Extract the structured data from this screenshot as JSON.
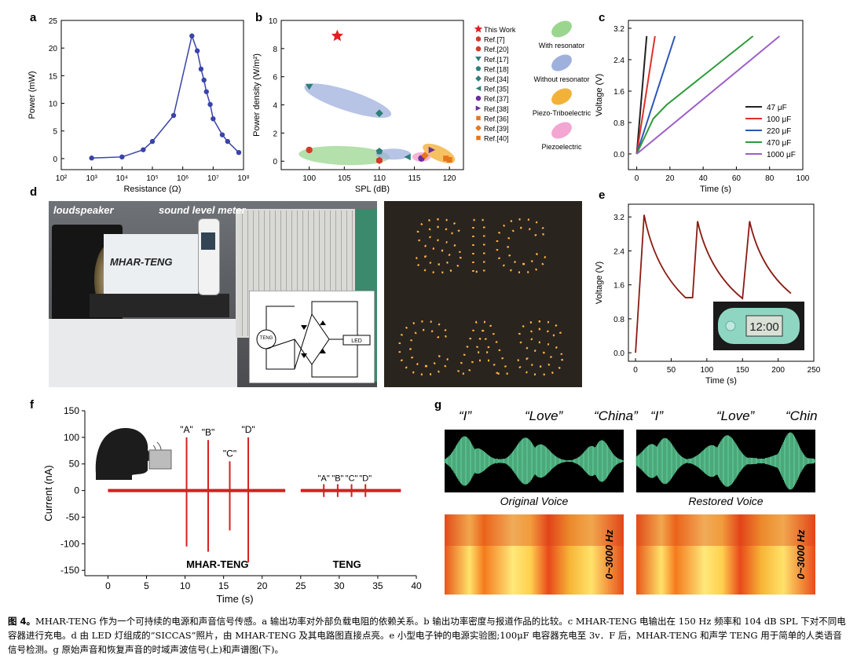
{
  "labels": {
    "a": "a",
    "b": "b",
    "c": "c",
    "d": "d",
    "e": "e",
    "f": "f",
    "g": "g"
  },
  "panel_a": {
    "chart_data": {
      "type": "line",
      "xlabel": "Resistance (Ω)",
      "ylabel": "Power (mW)",
      "xscale": "log",
      "xlim": [
        100,
        100000000
      ],
      "ylim": [
        -2,
        25
      ],
      "xticks": [
        "10²",
        "10³",
        "10⁴",
        "10⁵",
        "10⁶",
        "10⁷",
        "10⁸"
      ],
      "yticks": [
        0,
        5,
        10,
        15,
        20,
        25
      ],
      "x": [
        1000,
        10000,
        50000,
        100000,
        500000,
        2000000,
        3000000,
        4000000,
        5000000,
        6000000,
        8000000,
        10000000,
        20000000,
        30000000,
        70000000
      ],
      "y": [
        0.1,
        0.3,
        1.6,
        3.1,
        7.8,
        22.2,
        19.5,
        16.2,
        14.2,
        12.1,
        9.8,
        7.2,
        4.3,
        3.1,
        1.1
      ],
      "color": "#3a43a8"
    }
  },
  "panel_b": {
    "chart_data": {
      "type": "scatter",
      "xlabel": "SPL (dB)",
      "ylabel": "Power density (W/m²)",
      "xlim": [
        96,
        122
      ],
      "ylim": [
        -0.6,
        10
      ],
      "xticks": [
        100,
        105,
        110,
        115,
        120
      ],
      "yticks": [
        0,
        2,
        4,
        6,
        8,
        10
      ],
      "points": [
        {
          "name": "This Work",
          "x": 104,
          "y": 8.9,
          "marker": "star",
          "color": "#e02020"
        },
        {
          "name": "Ref.[7]",
          "x": 110,
          "y": 0.05,
          "marker": "hexagon",
          "color": "#d23b2a"
        },
        {
          "name": "Ref.[20]",
          "x": 100,
          "y": 0.8,
          "marker": "circle",
          "color": "#d23b2a"
        },
        {
          "name": "Ref.[17]",
          "x": 100,
          "y": 5.3,
          "marker": "triangle-down",
          "color": "#2d7f7a"
        },
        {
          "name": "Ref.[18]",
          "x": 110,
          "y": 0.7,
          "marker": "pentagon",
          "color": "#2d7f7a"
        },
        {
          "name": "Ref.[34]",
          "x": 110,
          "y": 3.4,
          "marker": "diamond",
          "color": "#2d7f7a"
        },
        {
          "name": "Ref.[35]",
          "x": 114,
          "y": 0.3,
          "marker": "triangle-left",
          "color": "#2d7f7a"
        },
        {
          "name": "Ref.[37]",
          "x": 116,
          "y": 0.2,
          "marker": "half-circle",
          "color": "#6a2fa0"
        },
        {
          "name": "Ref.[38]",
          "x": 117.5,
          "y": 0.8,
          "marker": "triangle-right",
          "color": "#6a2fa0"
        },
        {
          "name": "Ref.[36]",
          "x": 119.5,
          "y": 0.2,
          "marker": "square",
          "color": "#e8751a"
        },
        {
          "name": "Ref.[39]",
          "x": 116.5,
          "y": 0.4,
          "marker": "half-diamond",
          "color": "#e8751a"
        },
        {
          "name": "Ref.[40]",
          "x": 120,
          "y": 0.1,
          "marker": "half-square",
          "color": "#e8751a"
        }
      ],
      "regions": [
        {
          "name": "With resonator",
          "color": "#9bd68f"
        },
        {
          "name": "Without resonator",
          "color": "#9fb0dd"
        },
        {
          "name": "Piezo-Triboelectric",
          "color": "#f2b23a"
        },
        {
          "name": "Piezoelectric",
          "color": "#f3a6d2"
        }
      ]
    }
  },
  "panel_c": {
    "chart_data": {
      "type": "line",
      "xlabel": "Time (s)",
      "ylabel": "Voltage (V)",
      "xlim": [
        -5,
        100
      ],
      "ylim": [
        -0.4,
        3.4
      ],
      "xticks": [
        0,
        20,
        40,
        60,
        80,
        100
      ],
      "yticks": [
        "0.0",
        "0.8",
        "1.6",
        "2.4",
        "3.2"
      ],
      "series": [
        {
          "name": "47 μF",
          "color": "#222222",
          "x": [
            0,
            6
          ],
          "y": [
            0,
            3.0
          ]
        },
        {
          "name": "100 μF",
          "color": "#e0302a",
          "x": [
            0,
            11
          ],
          "y": [
            0,
            3.0
          ]
        },
        {
          "name": "220 μF",
          "color": "#2e55b7",
          "x": [
            0,
            23
          ],
          "y": [
            0,
            3.0
          ]
        },
        {
          "name": "470 μF",
          "color": "#2f9a3c",
          "x": [
            0,
            10,
            18,
            70
          ],
          "y": [
            0,
            0.9,
            1.25,
            3.0
          ]
        },
        {
          "name": "1000 μF",
          "color": "#9c5fc9",
          "x": [
            0,
            86
          ],
          "y": [
            0,
            3.0
          ]
        }
      ]
    }
  },
  "panel_d": {
    "label_loudspeaker": "loudspeaker",
    "label_slm": "sound level meter",
    "label_device": "MHAR-TENG",
    "circuit_teng": "TENG",
    "circuit_led": "LED",
    "led_text_top": "SIC",
    "led_text_bottom": "CAS"
  },
  "panel_e": {
    "chart_data": {
      "type": "line",
      "xlabel": "Time (s)",
      "ylabel": "Voltage (V)",
      "xlim": [
        -10,
        250
      ],
      "ylim": [
        -0.2,
        3.5
      ],
      "xticks": [
        0,
        50,
        100,
        150,
        200,
        250
      ],
      "yticks": [
        "0.0",
        "0.8",
        "1.6",
        "2.4",
        "3.2"
      ],
      "x": [
        0,
        12,
        70,
        80,
        87,
        150,
        160,
        218
      ],
      "y": [
        0,
        3.25,
        1.3,
        1.3,
        3.1,
        1.28,
        3.1,
        1.4
      ],
      "color": "#8a1b12"
    },
    "clock_text": "12:00"
  },
  "panel_f": {
    "chart_data": {
      "type": "line",
      "xlabel": "Time (s)",
      "ylabel": "Current (nA)",
      "xlim": [
        -3,
        40
      ],
      "ylim": [
        -160,
        150
      ],
      "xticks": [
        0,
        5,
        10,
        15,
        20,
        25,
        30,
        35,
        40
      ],
      "yticks": [
        150,
        100,
        50,
        0,
        -50,
        -100,
        -150
      ],
      "series": [
        {
          "name": "MHAR-TENG",
          "spikes": [
            {
              "label": "\"A\"",
              "t": 10.2,
              "up": 100,
              "down": -105
            },
            {
              "label": "\"B\"",
              "t": 13.0,
              "up": 95,
              "down": -115
            },
            {
              "label": "\"C\"",
              "t": 15.8,
              "up": 55,
              "down": -75
            },
            {
              "label": "\"D\"",
              "t": 18.2,
              "up": 100,
              "down": -135
            }
          ]
        },
        {
          "name": "TENG",
          "spikes": [
            {
              "label": "\"A\"",
              "t": 28.0,
              "up": 12,
              "down": -12
            },
            {
              "label": "\"B\"",
              "t": 29.8,
              "up": 12,
              "down": -12
            },
            {
              "label": "\"C\"",
              "t": 31.6,
              "up": 12,
              "down": -12
            },
            {
              "label": "\"D\"",
              "t": 33.4,
              "up": 12,
              "down": -12
            }
          ]
        }
      ],
      "color": "#d42020"
    }
  },
  "panel_g": {
    "words": [
      "“I”",
      "“Love”",
      "“China”"
    ],
    "original_label": "Original Voice",
    "restored_label": "Restored Voice",
    "freq_label": "0~3000 Hz",
    "wave_color": "#5fd39a"
  },
  "caption": {
    "fig": "图 4。",
    "text": "MHAR-TENG 作为一个可持续的电源和声音信号传感。a 输出功率对外部负载电阻的依赖关系。b 输出功率密度与报道作品的比较。c MHAR-TENG 电输出在 150 Hz 频率和 104 dB SPL 下对不同电容器进行充电。d 由 LED 灯组成的“SICCAS”照片，由 MHAR-TENG 及其电路图直接点亮。e 小型电子钟的电源实验图;100μF 电容器充电至 3v．F 后，MHAR-TENG 和声学 TENG 用于简单的人类语音信号检测。g 原始声音和恢复声音的时域声波信号(上)和声谱图(下)。"
  }
}
